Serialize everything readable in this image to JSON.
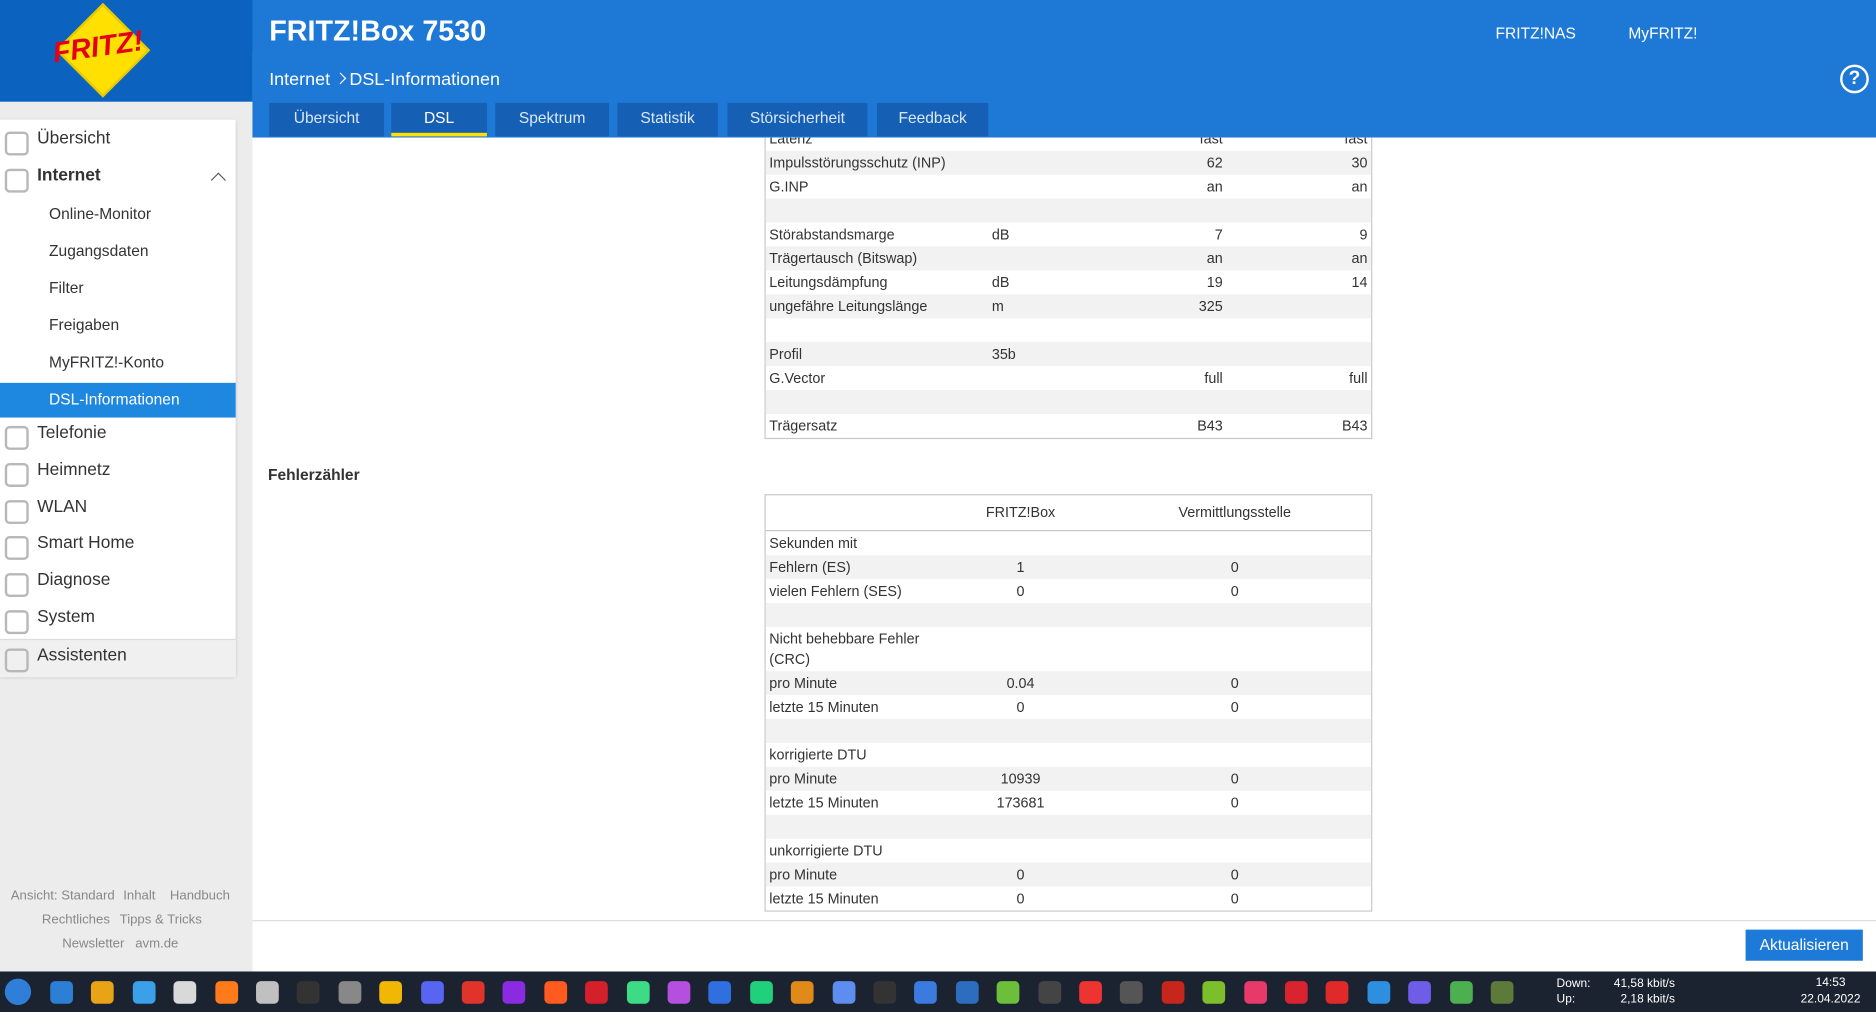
{
  "header": {
    "logo": "FRITZ!",
    "title": "FRITZ!Box 7530",
    "links": [
      "FRITZ!NAS",
      "MyFRITZ!"
    ],
    "breadcrumb": [
      "Internet",
      "DSL-Informationen"
    ],
    "help": "?"
  },
  "tabs": {
    "items": [
      "Übersicht",
      "DSL",
      "Spektrum",
      "Statistik",
      "Störsicherheit",
      "Feedback"
    ],
    "active": 1
  },
  "menu": {
    "top": [
      "Übersicht",
      "Internet"
    ],
    "internet_submenu": [
      "Online-Monitor",
      "Zugangsdaten",
      "Filter",
      "Freigaben",
      "MyFRITZ!-Konto",
      "DSL-Informationen"
    ],
    "active_sub": 5,
    "rest": [
      "Telefonie",
      "Heimnetz",
      "WLAN",
      "Smart Home",
      "Diagnose",
      "System"
    ],
    "assistant": "Assistenten"
  },
  "footer_links": [
    [
      "Ansicht: Standard",
      "Inhalt",
      "Handbuch"
    ],
    [
      "Rechtliches",
      "Tipps & Tricks"
    ],
    [
      "Newsletter",
      "avm.de"
    ]
  ],
  "table1": {
    "groups": [
      [
        {
          "label": "Latenz",
          "down": "fast",
          "up": "fast"
        },
        {
          "label": "Impulsstörungsschutz (INP)",
          "down": 62,
          "up": 30
        },
        {
          "label": "G.INP",
          "down": "an",
          "up": "an"
        }
      ],
      [
        {
          "label": "Störabstandsmarge",
          "unit": "dB",
          "down": 7,
          "up": 9
        },
        {
          "label": "Trägertausch (Bitswap)",
          "down": "an",
          "up": "an"
        },
        {
          "label": "Leitungsdämpfung",
          "unit": "dB",
          "down": 19,
          "up": 14
        },
        {
          "label": "ungefähre Leitungslänge",
          "unit": "m",
          "down": 325
        }
      ],
      [
        {
          "label": "Profil",
          "unit": "35b"
        },
        {
          "label": "G.Vector",
          "down": "full",
          "up": "full"
        }
      ],
      [
        {
          "label": "Trägersatz",
          "down": "B43",
          "up": "B43"
        }
      ]
    ]
  },
  "section_title": "Fehlerzähler",
  "table2": {
    "columns": [
      "FRITZ!Box",
      "Vermittlungsstelle"
    ],
    "groups": [
      {
        "heading": "Sekunden mit",
        "rows": [
          {
            "label": "Fehlern (ES)",
            "fritzbox": 1,
            "vst": 0
          },
          {
            "label": "vielen Fehlern (SES)",
            "fritzbox": 0,
            "vst": 0
          }
        ]
      },
      {
        "heading": "Nicht behebbare Fehler (CRC)",
        "rows": [
          {
            "label": "pro Minute",
            "fritzbox": 0.04,
            "vst": 0
          },
          {
            "label": "letzte 15 Minuten",
            "fritzbox": 0,
            "vst": 0
          }
        ]
      },
      {
        "heading": "korrigierte DTU",
        "rows": [
          {
            "label": "pro Minute",
            "fritzbox": 10939,
            "vst": 0
          },
          {
            "label": "letzte 15 Minuten",
            "fritzbox": 173681,
            "vst": 0
          }
        ]
      },
      {
        "heading": "unkorrigierte DTU",
        "rows": [
          {
            "label": "pro Minute",
            "fritzbox": 0,
            "vst": 0
          },
          {
            "label": "letzte 15 Minuten",
            "fritzbox": 0,
            "vst": 0
          }
        ]
      }
    ]
  },
  "button": "Aktualisieren",
  "taskbar": {
    "net_labels": [
      "Down:",
      "Up:"
    ],
    "net_values": [
      "41,58 kbit/s",
      "2,18 kbit/s"
    ],
    "time": "14:53",
    "date": "22.04.2022"
  }
}
